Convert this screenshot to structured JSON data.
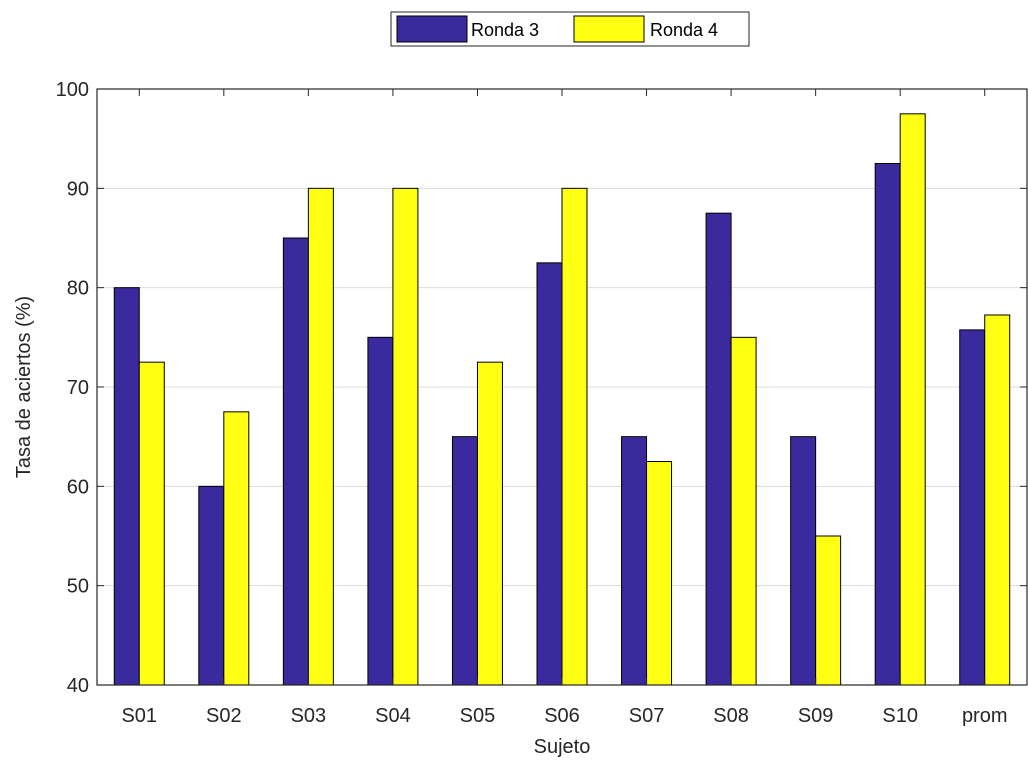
{
  "chart_data": {
    "type": "bar",
    "categories": [
      "S01",
      "S02",
      "S03",
      "S04",
      "S05",
      "S06",
      "S07",
      "S08",
      "S09",
      "S10",
      "prom"
    ],
    "series": [
      {
        "name": "Ronda 3",
        "color": "#3b2a9e",
        "values": [
          80,
          60,
          85,
          75,
          65,
          82.5,
          65,
          87.5,
          65,
          92.5,
          75.75
        ]
      },
      {
        "name": "Ronda 4",
        "color": "#ffff14",
        "values": [
          72.5,
          67.5,
          90,
          90,
          72.5,
          90,
          62.5,
          75,
          55,
          97.5,
          77.25
        ]
      }
    ],
    "xlabel": "Sujeto",
    "ylabel": "Tasa de aciertos (%)",
    "ylim": [
      40,
      100
    ],
    "yticks": [
      40,
      50,
      60,
      70,
      80,
      90,
      100
    ],
    "grid": "horizontal",
    "legend_position": "top-center"
  }
}
